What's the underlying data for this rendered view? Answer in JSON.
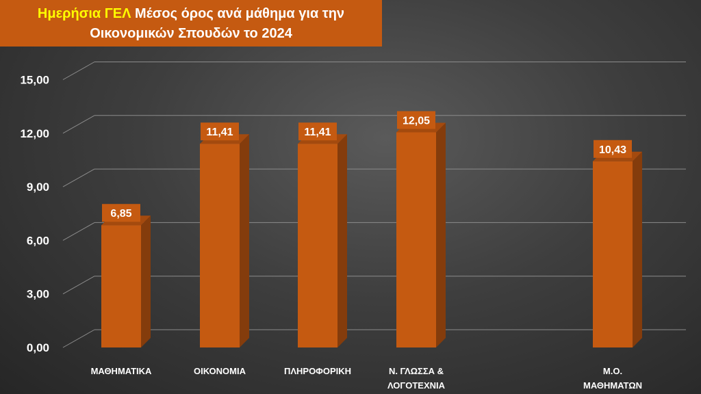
{
  "title": {
    "highlight": "Ημερήσια ΓΕΛ",
    "rest_line1": " Μέσος όρος ανά μάθημα για την",
    "line2": "Οικονομικών Σπουδών το 2024"
  },
  "colors": {
    "bar": "#c55a11",
    "bar_side": "#843c0c",
    "bar_top": "#a44a0e",
    "title_bg": "#c55a11",
    "title_highlight": "#ffff00",
    "grid": "#8c8c8c"
  },
  "chart_data": {
    "type": "bar",
    "title": "Ημερήσια ΓΕΛ Μέσος όρος ανά μάθημα για την Οικονομικών Σπουδών το 2024",
    "categories": [
      [
        "ΜΑΘΗΜΑΤΙΚΑ"
      ],
      [
        "ΟΙΚΟΝΟΜΙΑ"
      ],
      [
        "ΠΛΗΡΟΦΟΡΙΚΗ"
      ],
      [
        "Ν. ΓΛΩΣΣΑ &",
        "ΛΟΓΟΤΕΧΝΙΑ"
      ],
      [
        "Μ.Ο.",
        "ΜΑΘΗΜΑΤΩΝ"
      ]
    ],
    "values": [
      6.85,
      11.41,
      11.41,
      12.05,
      10.43
    ],
    "value_labels": [
      "6,85",
      "11,41",
      "11,41",
      "12,05",
      "10,43"
    ],
    "yticks": [
      "0,00",
      "3,00",
      "6,00",
      "9,00",
      "12,00",
      "15,00"
    ],
    "ylim": [
      0,
      15
    ],
    "xlabel": "",
    "ylabel": "",
    "grid": true,
    "style": "3d"
  }
}
